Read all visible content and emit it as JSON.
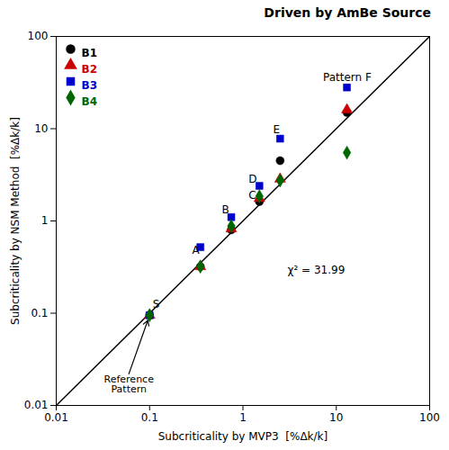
{
  "chart_data": {
    "type": "scatter",
    "title": "Driven by AmBe Source",
    "xlabel": "Subcriticality by MVP3  [%Δk/k]",
    "ylabel": "Subcriticality by NSM Method  [%Δk/k]",
    "log": true,
    "xlim": [
      0.01,
      100
    ],
    "ylim": [
      0.01,
      100
    ],
    "xticks": [
      0.01,
      0.1,
      1,
      10,
      100
    ],
    "yticks": [
      0.01,
      0.1,
      1,
      10,
      100
    ],
    "grid": false,
    "legend": "upper left",
    "x": [
      0.1,
      0.35,
      0.75,
      1.5,
      2.5,
      13.0
    ],
    "series": [
      {
        "name": "B1",
        "color": "#000000",
        "marker": "circle",
        "values": [
          0.095,
          0.32,
          0.8,
          1.62,
          4.5,
          15.0
        ]
      },
      {
        "name": "B2",
        "color": "#cc0000",
        "marker": "triangle",
        "values": [
          0.095,
          0.32,
          0.82,
          1.75,
          2.85,
          16.0
        ]
      },
      {
        "name": "B3",
        "color": "#0000cc",
        "marker": "square",
        "values": [
          0.095,
          0.52,
          1.1,
          2.4,
          7.8,
          28.0
        ]
      },
      {
        "name": "B4",
        "color": "#006600",
        "marker": "diamond",
        "values": [
          0.095,
          0.32,
          0.88,
          1.85,
          2.75,
          5.5
        ]
      }
    ],
    "reference_line": {
      "x": [
        0.01,
        100
      ],
      "y": [
        0.01,
        100
      ],
      "color": "#000000"
    },
    "annotations": [
      {
        "text": "S",
        "x": 0.108,
        "y": 0.115
      },
      {
        "text": "A",
        "x": 0.285,
        "y": 0.44
      },
      {
        "text": "B",
        "x": 0.595,
        "y": 1.2
      },
      {
        "text": "C",
        "x": 1.15,
        "y": 1.72
      },
      {
        "text": "D",
        "x": 1.15,
        "y": 2.6
      },
      {
        "text": "E",
        "x": 2.1,
        "y": 9.0
      },
      {
        "text": "Pattern F",
        "x": 7.2,
        "y": 33.0
      },
      {
        "text": "χ² = 31.99",
        "x": 3.0,
        "y": 0.27
      },
      {
        "text": "Reference\nPattern",
        "x": 0.06,
        "y": 0.022,
        "arrow_x": 0.1,
        "arrow_y": 0.095
      }
    ]
  }
}
